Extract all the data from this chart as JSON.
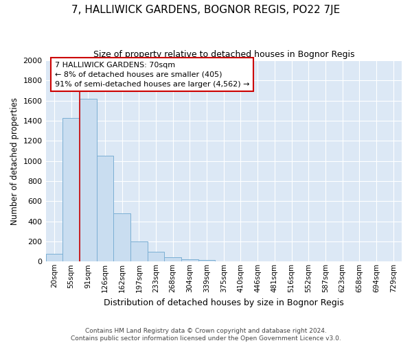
{
  "title": "7, HALLIWICK GARDENS, BOGNOR REGIS, PO22 7JE",
  "subtitle": "Size of property relative to detached houses in Bognor Regis",
  "xlabel": "Distribution of detached houses by size in Bognor Regis",
  "ylabel": "Number of detached properties",
  "bar_labels": [
    "20sqm",
    "55sqm",
    "91sqm",
    "126sqm",
    "162sqm",
    "197sqm",
    "233sqm",
    "268sqm",
    "304sqm",
    "339sqm",
    "375sqm",
    "410sqm",
    "446sqm",
    "481sqm",
    "516sqm",
    "552sqm",
    "587sqm",
    "623sqm",
    "658sqm",
    "694sqm",
    "729sqm"
  ],
  "bar_values": [
    80,
    1430,
    1620,
    1050,
    480,
    200,
    100,
    40,
    20,
    15,
    0,
    0,
    0,
    0,
    0,
    0,
    0,
    0,
    0,
    0,
    0
  ],
  "bar_color": "#c9ddf0",
  "bar_edge_color": "#7bafd4",
  "vline_color": "#cc0000",
  "vline_x": 1.5,
  "annotation_line1": "7 HALLIWICK GARDENS: 70sqm",
  "annotation_line2": "← 8% of detached houses are smaller (405)",
  "annotation_line3": "91% of semi-detached houses are larger (4,562) →",
  "annotation_box_facecolor": "white",
  "annotation_box_edgecolor": "#cc0000",
  "ylim": [
    0,
    2000
  ],
  "yticks": [
    0,
    200,
    400,
    600,
    800,
    1000,
    1200,
    1400,
    1600,
    1800,
    2000
  ],
  "footer_line1": "Contains HM Land Registry data © Crown copyright and database right 2024.",
  "footer_line2": "Contains public sector information licensed under the Open Government Licence v3.0.",
  "plot_bg_color": "#dce8f5",
  "fig_bg_color": "#ffffff",
  "grid_color": "#ffffff"
}
